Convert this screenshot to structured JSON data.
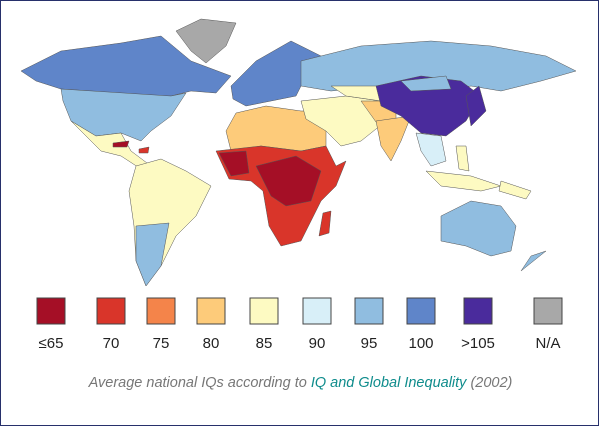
{
  "legend": {
    "items": [
      {
        "label": "≤65",
        "color": "#a50f26"
      },
      {
        "label": "70",
        "color": "#d9352a"
      },
      {
        "label": "75",
        "color": "#f4844a"
      },
      {
        "label": "80",
        "color": "#fdcb7a"
      },
      {
        "label": "85",
        "color": "#fdfac2"
      },
      {
        "label": "90",
        "color": "#d8eff8"
      },
      {
        "label": "95",
        "color": "#90bde0"
      },
      {
        "label": "100",
        "color": "#5f85c9"
      },
      {
        "label": ">105",
        "color": "#4a2b9c"
      },
      {
        "label": "N/A",
        "color": "#a8a8a8"
      }
    ]
  },
  "caption": {
    "text": "Average national IQs according to",
    "link": "IQ and Global Inequality",
    "year": "(2002)"
  }
}
